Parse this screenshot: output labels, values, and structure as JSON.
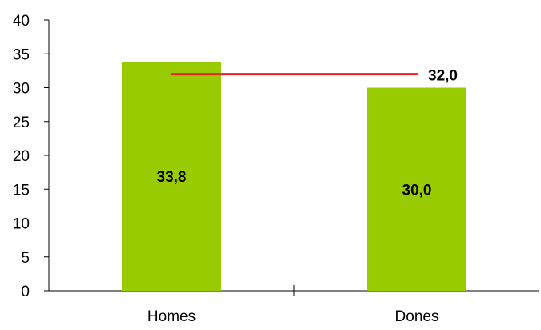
{
  "chart_data": {
    "type": "bar",
    "categories": [
      "Homes",
      "Dones"
    ],
    "series": [
      {
        "values": [
          33.8,
          30.0
        ],
        "data_labels": [
          "33,8",
          "30,0"
        ],
        "color": "#99cc00"
      }
    ],
    "reference_line": {
      "value": 32.0,
      "label": "32,0",
      "color": "#e8231e"
    },
    "y_ticks": [
      "0",
      "5",
      "10",
      "15",
      "20",
      "25",
      "30",
      "35",
      "40"
    ],
    "ylim": [
      0,
      40
    ],
    "grid": false,
    "legend": "none"
  }
}
